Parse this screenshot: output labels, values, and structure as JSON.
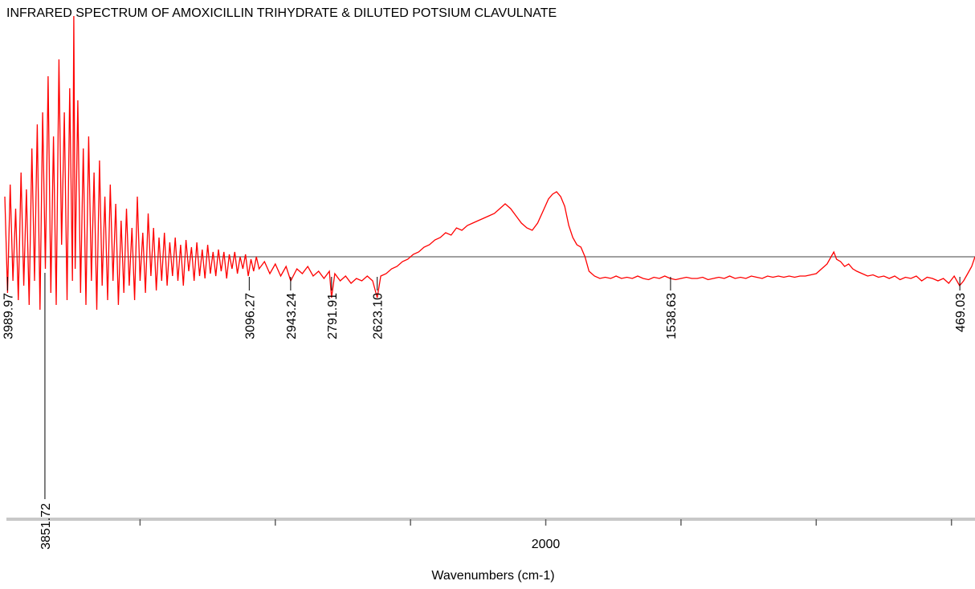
{
  "chart_data": {
    "type": "line",
    "title": "INFRARED SPECTRUM OF AMOXICILLIN TRIHYDRATE & DILUTED POTSIUM CLAVULNATE",
    "xlabel": "Wavenumbers (cm-1)",
    "xlim": [
      4000,
      410
    ],
    "xticks": [
      2000
    ],
    "xminor_ticks": [
      3500,
      3000,
      2500,
      1500,
      1000,
      500
    ],
    "ylim": [
      -1,
      1
    ],
    "baseline": 0,
    "baseline_color": "#808080",
    "x": [
      4000,
      3990,
      3980,
      3970,
      3960,
      3950,
      3940,
      3930,
      3920,
      3910,
      3900,
      3890,
      3880,
      3870,
      3860,
      3850,
      3840,
      3830,
      3820,
      3810,
      3800,
      3790,
      3780,
      3770,
      3760,
      3750,
      3745,
      3740,
      3730,
      3720,
      3710,
      3700,
      3690,
      3680,
      3670,
      3660,
      3650,
      3640,
      3630,
      3620,
      3610,
      3600,
      3590,
      3580,
      3570,
      3560,
      3550,
      3540,
      3530,
      3520,
      3510,
      3500,
      3490,
      3480,
      3470,
      3460,
      3450,
      3440,
      3430,
      3420,
      3410,
      3400,
      3390,
      3380,
      3370,
      3360,
      3350,
      3340,
      3330,
      3320,
      3310,
      3300,
      3290,
      3280,
      3270,
      3260,
      3250,
      3240,
      3230,
      3220,
      3210,
      3200,
      3190,
      3180,
      3170,
      3160,
      3150,
      3140,
      3130,
      3120,
      3110,
      3100,
      3090,
      3080,
      3070,
      3060,
      3040,
      3020,
      3000,
      2980,
      2960,
      2943,
      2920,
      2900,
      2880,
      2860,
      2840,
      2820,
      2800,
      2792,
      2780,
      2760,
      2740,
      2720,
      2700,
      2680,
      2660,
      2640,
      2623,
      2610,
      2590,
      2570,
      2550,
      2530,
      2510,
      2490,
      2470,
      2450,
      2430,
      2410,
      2390,
      2370,
      2350,
      2330,
      2310,
      2290,
      2270,
      2250,
      2230,
      2210,
      2190,
      2170,
      2150,
      2130,
      2110,
      2090,
      2070,
      2050,
      2030,
      2010,
      1990,
      1975,
      1960,
      1945,
      1930,
      1915,
      1900,
      1885,
      1870,
      1855,
      1840,
      1820,
      1800,
      1780,
      1760,
      1740,
      1720,
      1700,
      1680,
      1660,
      1640,
      1620,
      1600,
      1580,
      1560,
      1540,
      1520,
      1500,
      1480,
      1460,
      1440,
      1420,
      1400,
      1380,
      1360,
      1340,
      1320,
      1300,
      1280,
      1260,
      1240,
      1220,
      1200,
      1180,
      1160,
      1140,
      1120,
      1100,
      1080,
      1060,
      1040,
      1020,
      1000,
      980,
      960,
      945,
      935,
      925,
      910,
      895,
      880,
      865,
      850,
      830,
      810,
      790,
      770,
      750,
      730,
      710,
      690,
      670,
      650,
      630,
      610,
      590,
      570,
      550,
      530,
      510,
      490,
      470,
      455,
      440,
      425,
      413
    ],
    "series": [
      {
        "color": "#ff0000",
        "values": [
          0.25,
          -0.15,
          0.3,
          -0.1,
          0.2,
          -0.18,
          0.35,
          -0.12,
          0.28,
          -0.2,
          0.45,
          -0.1,
          0.55,
          -0.22,
          0.6,
          -0.05,
          0.75,
          -0.15,
          0.5,
          -0.2,
          0.82,
          0.05,
          0.6,
          -0.18,
          0.7,
          -0.1,
          1.0,
          -0.05,
          0.65,
          -0.15,
          0.45,
          -0.2,
          0.5,
          -0.1,
          0.35,
          -0.22,
          0.4,
          -0.12,
          0.25,
          -0.18,
          0.3,
          -0.1,
          0.22,
          -0.2,
          0.15,
          -0.15,
          0.2,
          -0.12,
          0.12,
          -0.18,
          0.25,
          -0.1,
          0.1,
          -0.15,
          0.18,
          -0.08,
          0.12,
          -0.14,
          0.08,
          -0.1,
          0.1,
          -0.12,
          0.06,
          -0.08,
          0.08,
          -0.1,
          0.05,
          -0.12,
          0.07,
          -0.06,
          0.04,
          -0.1,
          0.06,
          -0.08,
          0.03,
          -0.09,
          0.05,
          -0.07,
          0.02,
          -0.08,
          0.03,
          -0.06,
          0.02,
          -0.09,
          0.01,
          -0.05,
          0.02,
          -0.07,
          0.0,
          -0.05,
          0.01,
          -0.08,
          -0.01,
          -0.06,
          0.0,
          -0.05,
          -0.02,
          -0.07,
          -0.03,
          -0.08,
          -0.04,
          -0.1,
          -0.05,
          -0.07,
          -0.04,
          -0.08,
          -0.06,
          -0.09,
          -0.06,
          -0.17,
          -0.07,
          -0.1,
          -0.08,
          -0.11,
          -0.09,
          -0.1,
          -0.08,
          -0.1,
          -0.17,
          -0.08,
          -0.07,
          -0.05,
          -0.04,
          -0.02,
          -0.01,
          0.01,
          0.02,
          0.04,
          0.05,
          0.07,
          0.08,
          0.1,
          0.09,
          0.12,
          0.11,
          0.13,
          0.14,
          0.15,
          0.16,
          0.17,
          0.18,
          0.2,
          0.22,
          0.2,
          0.17,
          0.14,
          0.12,
          0.11,
          0.14,
          0.19,
          0.24,
          0.26,
          0.27,
          0.25,
          0.21,
          0.13,
          0.08,
          0.05,
          0.04,
          0.0,
          -0.06,
          -0.08,
          -0.09,
          -0.085,
          -0.09,
          -0.08,
          -0.09,
          -0.085,
          -0.09,
          -0.08,
          -0.09,
          -0.095,
          -0.085,
          -0.09,
          -0.08,
          -0.09,
          -0.095,
          -0.09,
          -0.085,
          -0.09,
          -0.09,
          -0.085,
          -0.095,
          -0.09,
          -0.085,
          -0.09,
          -0.08,
          -0.09,
          -0.085,
          -0.09,
          -0.08,
          -0.085,
          -0.09,
          -0.08,
          -0.085,
          -0.08,
          -0.085,
          -0.08,
          -0.085,
          -0.08,
          -0.08,
          -0.075,
          -0.07,
          -0.05,
          -0.03,
          0.0,
          0.02,
          -0.01,
          -0.02,
          -0.04,
          -0.03,
          -0.05,
          -0.06,
          -0.07,
          -0.08,
          -0.075,
          -0.085,
          -0.08,
          -0.09,
          -0.08,
          -0.095,
          -0.085,
          -0.09,
          -0.08,
          -0.1,
          -0.085,
          -0.09,
          -0.1,
          -0.09,
          -0.11,
          -0.08,
          -0.12,
          -0.1,
          -0.07,
          -0.04,
          0.0
        ]
      }
    ],
    "peak_labels": [
      {
        "value": 3989.97,
        "label": "3989.97"
      },
      {
        "value": 3851.72,
        "label": "3851.72"
      },
      {
        "value": 3096.27,
        "label": "3096.27"
      },
      {
        "value": 2943.24,
        "label": "2943.24"
      },
      {
        "value": 2791.91,
        "label": "2791.91"
      },
      {
        "value": 2623.1,
        "label": "2623.10"
      },
      {
        "value": 1538.63,
        "label": "1538.63"
      },
      {
        "value": 469.03,
        "label": "469.03"
      }
    ]
  }
}
